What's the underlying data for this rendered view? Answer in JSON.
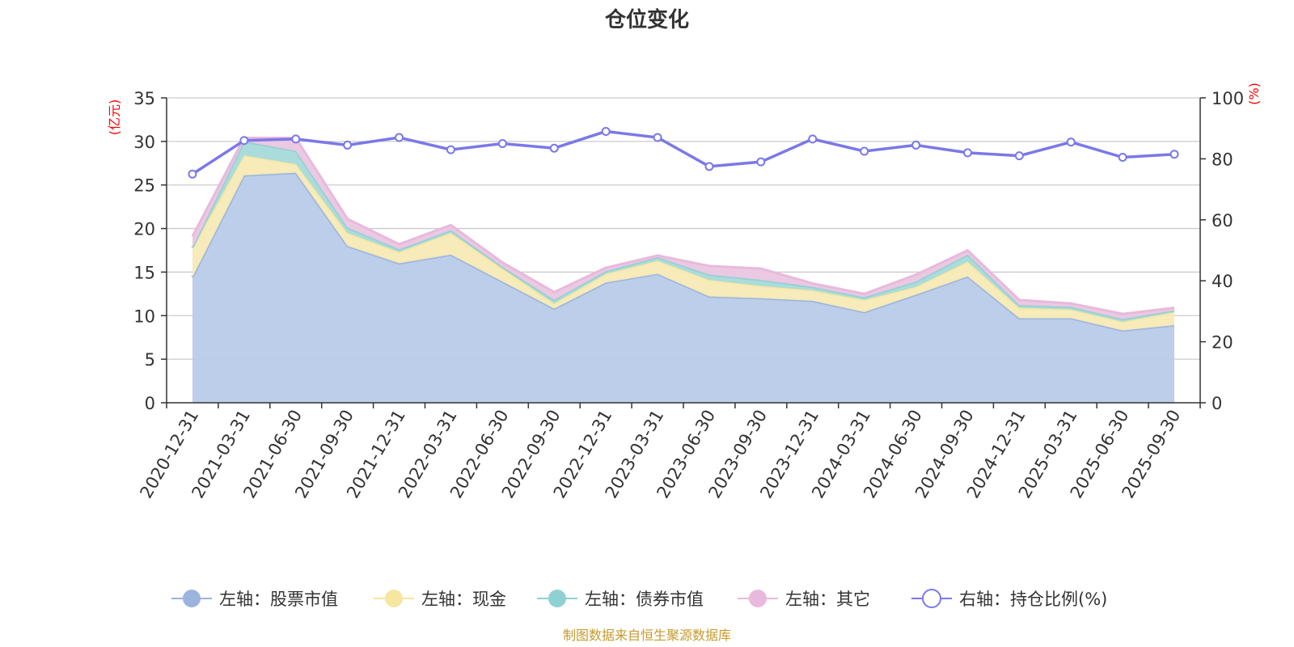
{
  "chart_data": {
    "type": "area",
    "title": "仓位变化",
    "left_unit": "(亿元)",
    "right_unit": "(%)",
    "categories": [
      "2020-12-31",
      "2021-03-31",
      "2021-06-30",
      "2021-09-30",
      "2021-12-31",
      "2022-03-31",
      "2022-06-30",
      "2022-09-30",
      "2022-12-31",
      "2023-03-31",
      "2023-06-30",
      "2023-09-30",
      "2023-12-31",
      "2024-03-31",
      "2024-06-30",
      "2024-09-30",
      "2024-12-31",
      "2025-03-31",
      "2025-06-30",
      "2025-09-30"
    ],
    "left_axis": {
      "min": 0,
      "max": 35,
      "ticks": [
        0,
        5,
        10,
        15,
        20,
        25,
        30,
        35
      ]
    },
    "right_axis": {
      "min": 0,
      "max": 100,
      "ticks": [
        0,
        20,
        40,
        60,
        80,
        100
      ]
    },
    "stacked_series": [
      {
        "name": "左轴：股票市值",
        "color": "#9ab4de",
        "fill": "#b8cbe8",
        "values": [
          14.4,
          26.1,
          26.4,
          18.0,
          16.0,
          17.0,
          13.9,
          10.8,
          13.8,
          14.8,
          12.2,
          12.0,
          11.7,
          10.4,
          12.4,
          14.5,
          9.7,
          9.7,
          8.3,
          8.9
        ]
      },
      {
        "name": "左轴：现金",
        "color": "#f6e6a0",
        "fill": "#f7eab6",
        "values": [
          3.4,
          2.3,
          1.0,
          1.5,
          1.3,
          2.5,
          1.5,
          0.6,
          1.0,
          1.5,
          1.9,
          1.4,
          1.2,
          1.4,
          0.9,
          1.7,
          1.2,
          1.0,
          1.0,
          1.5
        ]
      },
      {
        "name": "左轴：债券市值",
        "color": "#8fd1d2",
        "fill": "#a6dada",
        "values": [
          0.0,
          1.6,
          1.5,
          0.6,
          0.3,
          0.3,
          0.2,
          0.4,
          0.3,
          0.4,
          0.6,
          0.7,
          0.4,
          0.3,
          0.6,
          0.8,
          0.3,
          0.3,
          0.3,
          0.2
        ]
      },
      {
        "name": "左轴：其它",
        "color": "#e8b9dc",
        "fill": "#ebc6e2",
        "values": [
          1.3,
          0.4,
          1.5,
          1.0,
          0.6,
          0.6,
          0.5,
          0.9,
          0.4,
          0.2,
          1.0,
          1.3,
          0.4,
          0.4,
          0.8,
          0.5,
          0.6,
          0.4,
          0.6,
          0.3
        ]
      }
    ],
    "line_series": {
      "name": "右轴：持仓比例(%)",
      "color": "#7b78e8",
      "values": [
        75.0,
        86.0,
        86.5,
        84.5,
        87.0,
        83.0,
        85.0,
        83.5,
        89.0,
        87.0,
        77.5,
        79.0,
        86.5,
        82.5,
        84.5,
        82.0,
        81.0,
        85.5,
        80.5,
        81.5
      ]
    },
    "legend_position": "bottom-center",
    "source": "制图数据来自恒生聚源数据库"
  }
}
